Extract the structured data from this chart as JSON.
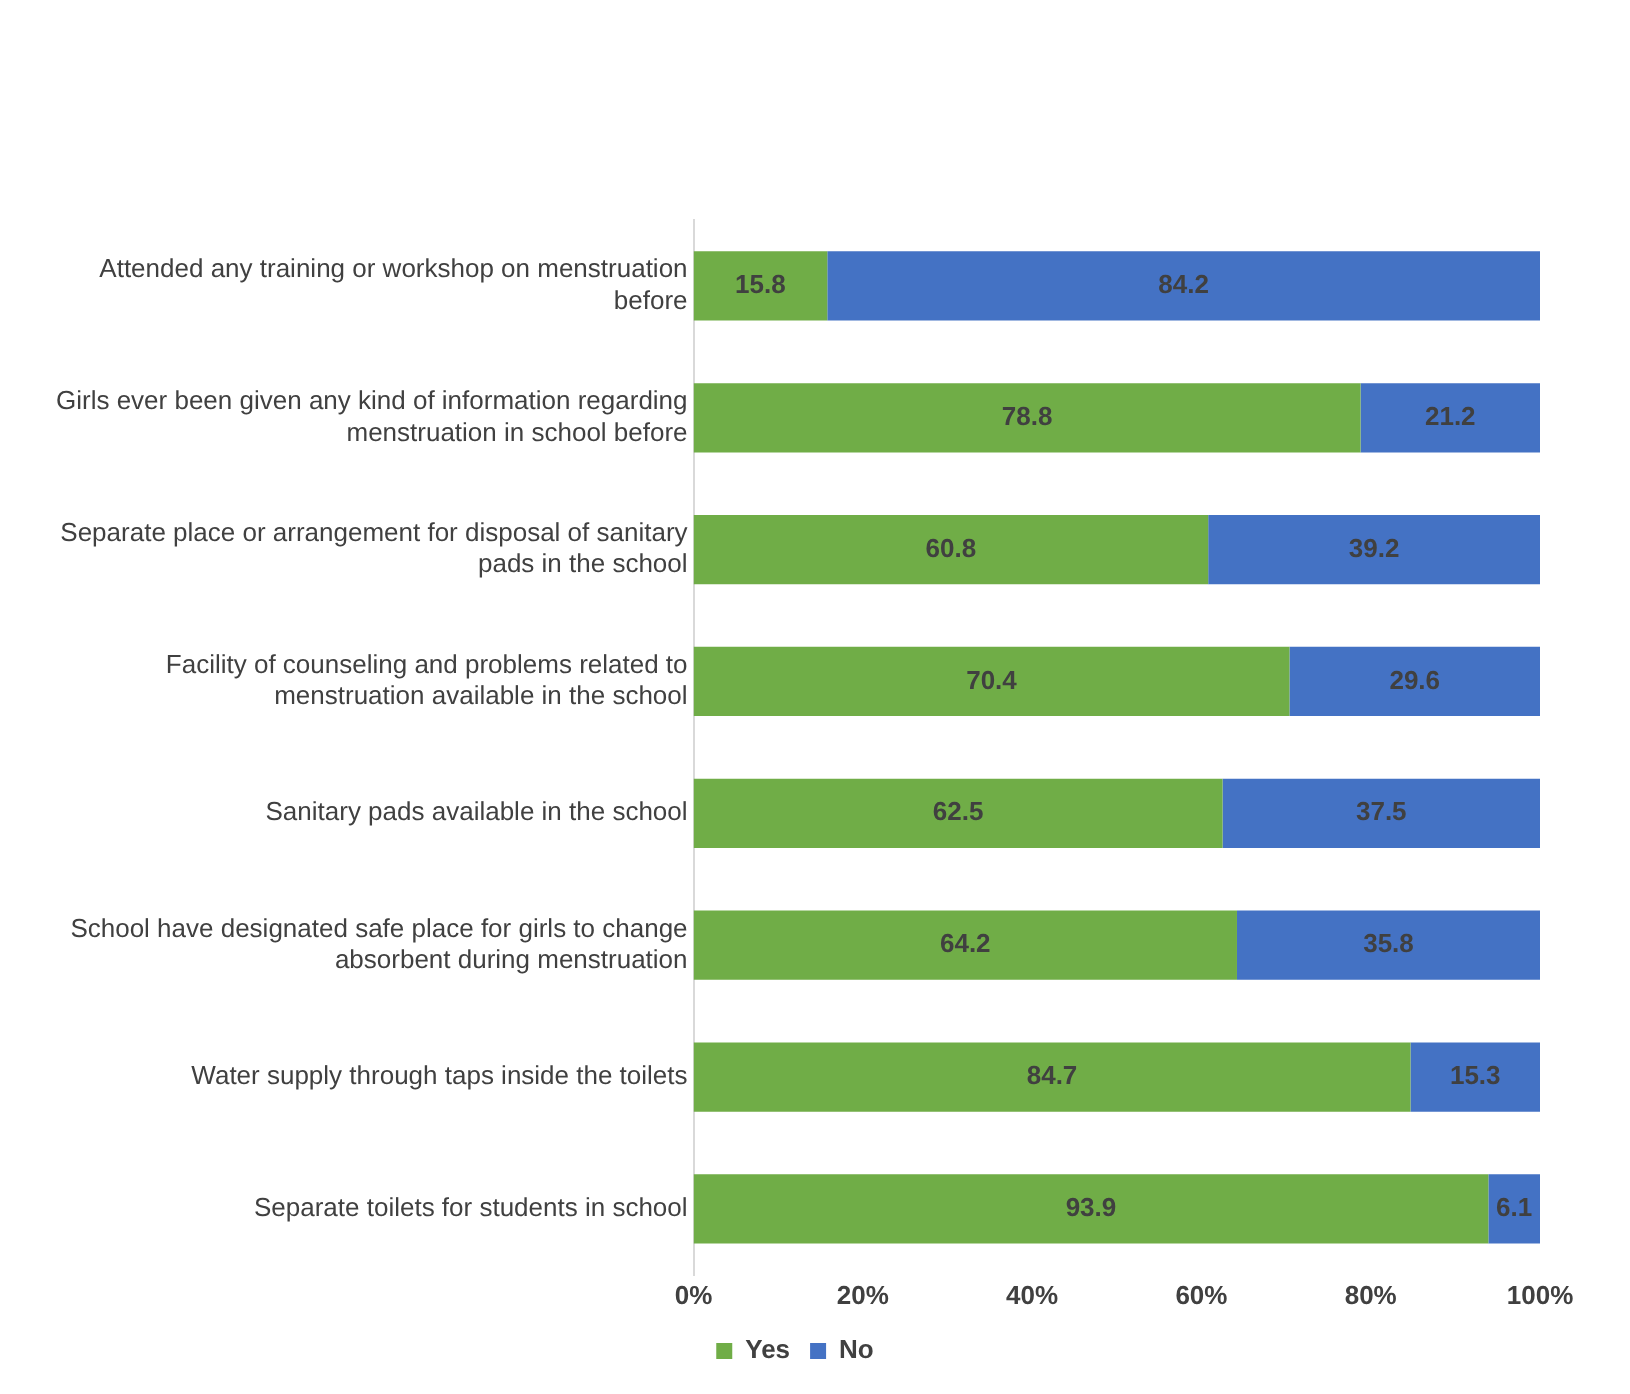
{
  "chart_data": {
    "type": "bar",
    "orientation": "horizontal",
    "stacked": true,
    "categories": [
      "Attended any training or workshop on menstruation before",
      "Girls ever been given any kind of information regarding menstruation in school before",
      "Separate place or arrangement for disposal of sanitary pads in the school",
      "Facility of counseling and problems related to menstruation available in the school",
      "Sanitary pads available in the school",
      "School have designated safe place for girls to change absorbent during menstruation",
      "Water supply through taps inside the toilets",
      "Separate toilets for students in school"
    ],
    "series": [
      {
        "name": "Yes",
        "color": "#70ad47",
        "values": [
          15.8,
          78.8,
          60.8,
          70.4,
          62.5,
          64.2,
          84.7,
          93.9
        ]
      },
      {
        "name": "No",
        "color": "#4472c4",
        "values": [
          84.2,
          21.2,
          39.2,
          29.6,
          37.5,
          35.8,
          15.3,
          6.1
        ]
      }
    ],
    "xlim": [
      0,
      100
    ],
    "xticks": [
      {
        "value": 0,
        "label": "0%"
      },
      {
        "value": 20,
        "label": "20%"
      },
      {
        "value": 40,
        "label": "40%"
      },
      {
        "value": 60,
        "label": "60%"
      },
      {
        "value": 80,
        "label": "80%"
      },
      {
        "value": 100,
        "label": "100%"
      }
    ],
    "data_labels": true,
    "legend": "bottom",
    "grid": false
  }
}
